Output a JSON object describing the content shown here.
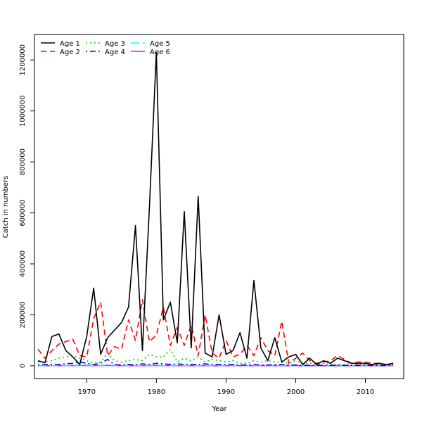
{
  "chart_data": {
    "type": "line",
    "title": "",
    "xlabel": "Year",
    "ylabel": "Catch in numbers",
    "xlim": [
      1962.5,
      2015.5
    ],
    "ylim": [
      -50000,
      1300000
    ],
    "xticks": [
      1970,
      1980,
      1990,
      2000,
      2010
    ],
    "xtick_labels": [
      "1970",
      "1980",
      "1990",
      "2000",
      "2010"
    ],
    "yticks": [
      0,
      200000,
      400000,
      600000,
      800000,
      1000000,
      1200000
    ],
    "ytick_labels": [
      "0",
      "200000",
      "400000",
      "600000",
      "800000",
      "1000000",
      "1200000"
    ],
    "grid": false,
    "legend_position": "top-left",
    "x": [
      1963,
      1964,
      1965,
      1966,
      1967,
      1968,
      1969,
      1970,
      1971,
      1972,
      1973,
      1974,
      1975,
      1976,
      1977,
      1978,
      1979,
      1980,
      1981,
      1982,
      1983,
      1984,
      1985,
      1986,
      1987,
      1988,
      1989,
      1990,
      1991,
      1992,
      1993,
      1994,
      1995,
      1996,
      1997,
      1998,
      1999,
      2000,
      2001,
      2002,
      2003,
      2004,
      2005,
      2006,
      2007,
      2008,
      2009,
      2010,
      2011,
      2012,
      2013,
      2014
    ],
    "series": [
      {
        "name": "Age 1",
        "color": "#000000",
        "dash": "solid",
        "values": [
          20000,
          12000,
          115000,
          125000,
          60000,
          35000,
          5000,
          115000,
          305000,
          45000,
          110000,
          140000,
          170000,
          230000,
          550000,
          60000,
          620000,
          1230000,
          180000,
          250000,
          90000,
          605000,
          70000,
          665000,
          50000,
          35000,
          200000,
          45000,
          60000,
          130000,
          30000,
          335000,
          70000,
          20000,
          110000,
          15000,
          35000,
          45000,
          5000,
          30000,
          5000,
          20000,
          10000,
          30000,
          20000,
          10000,
          10000,
          10000,
          5000,
          10000,
          5000,
          10000
        ]
      },
      {
        "name": "Age 2",
        "color": "#ff0000",
        "dash": "dashed",
        "values": [
          65000,
          30000,
          60000,
          85000,
          95000,
          105000,
          40000,
          35000,
          185000,
          250000,
          40000,
          75000,
          65000,
          180000,
          100000,
          260000,
          95000,
          120000,
          230000,
          80000,
          150000,
          80000,
          160000,
          40000,
          200000,
          50000,
          30000,
          100000,
          35000,
          45000,
          80000,
          40000,
          110000,
          60000,
          40000,
          175000,
          10000,
          30000,
          50000,
          20000,
          10000,
          15000,
          20000,
          40000,
          25000,
          10000,
          15000,
          15000,
          10000,
          10000,
          5000,
          5000
        ]
      },
      {
        "name": "Age 3",
        "color": "#00cd00",
        "dash": "dotted",
        "values": [
          15000,
          15000,
          20000,
          30000,
          35000,
          40000,
          30000,
          20000,
          10000,
          15000,
          50000,
          20000,
          15000,
          20000,
          25000,
          20000,
          45000,
          35000,
          35000,
          65000,
          15000,
          30000,
          20000,
          35000,
          15000,
          25000,
          20000,
          15000,
          20000,
          10000,
          10000,
          20000,
          15000,
          20000,
          15000,
          15000,
          10000,
          20000,
          10000,
          10000,
          5000,
          10000,
          5000,
          5000,
          5000,
          10000,
          5000,
          5000,
          5000,
          5000,
          5000,
          5000
        ]
      },
      {
        "name": "Age 4",
        "color": "#0000ff",
        "dash": "dashdot",
        "values": [
          3000,
          5000,
          5000,
          5000,
          8000,
          10000,
          15000,
          10000,
          5000,
          10000,
          25000,
          5000,
          3000,
          5000,
          3000,
          8000,
          5000,
          10000,
          8000,
          5000,
          8000,
          5000,
          5000,
          5000,
          8000,
          5000,
          5000,
          5000,
          5000,
          3000,
          3000,
          5000,
          3000,
          3000,
          5000,
          5000,
          3000,
          3000,
          2000,
          2000,
          2000,
          2000,
          2000,
          2000,
          2000,
          2000,
          2000,
          2000,
          2000,
          2000,
          2000,
          2000
        ]
      },
      {
        "name": "Age 5",
        "color": "#00ffff",
        "dash": "longdash",
        "values": [
          1000,
          1000,
          1000,
          1500,
          1500,
          2000,
          3000,
          3000,
          2000,
          2000,
          4000,
          2000,
          1500,
          2000,
          1500,
          2000,
          2000,
          3000,
          2000,
          2000,
          2000,
          1500,
          1500,
          1500,
          2000,
          1500,
          1500,
          1500,
          1500,
          1000,
          1000,
          1500,
          1000,
          1000,
          1500,
          1500,
          1000,
          1000,
          1000,
          1000,
          1000,
          1000,
          1000,
          1000,
          1000,
          1000,
          1000,
          1000,
          1000,
          1000,
          1000,
          1000
        ]
      },
      {
        "name": "Age 6",
        "color": "#ff00ff",
        "dash": "solid",
        "values": [
          500,
          500,
          500,
          500,
          700,
          800,
          1000,
          1000,
          800,
          800,
          1500,
          800,
          500,
          800,
          500,
          800,
          800,
          1000,
          800,
          800,
          800,
          500,
          500,
          500,
          800,
          500,
          500,
          500,
          500,
          400,
          400,
          500,
          400,
          400,
          500,
          500,
          400,
          400,
          300,
          300,
          300,
          300,
          300,
          300,
          300,
          300,
          300,
          300,
          300,
          300,
          300,
          300
        ]
      }
    ]
  }
}
